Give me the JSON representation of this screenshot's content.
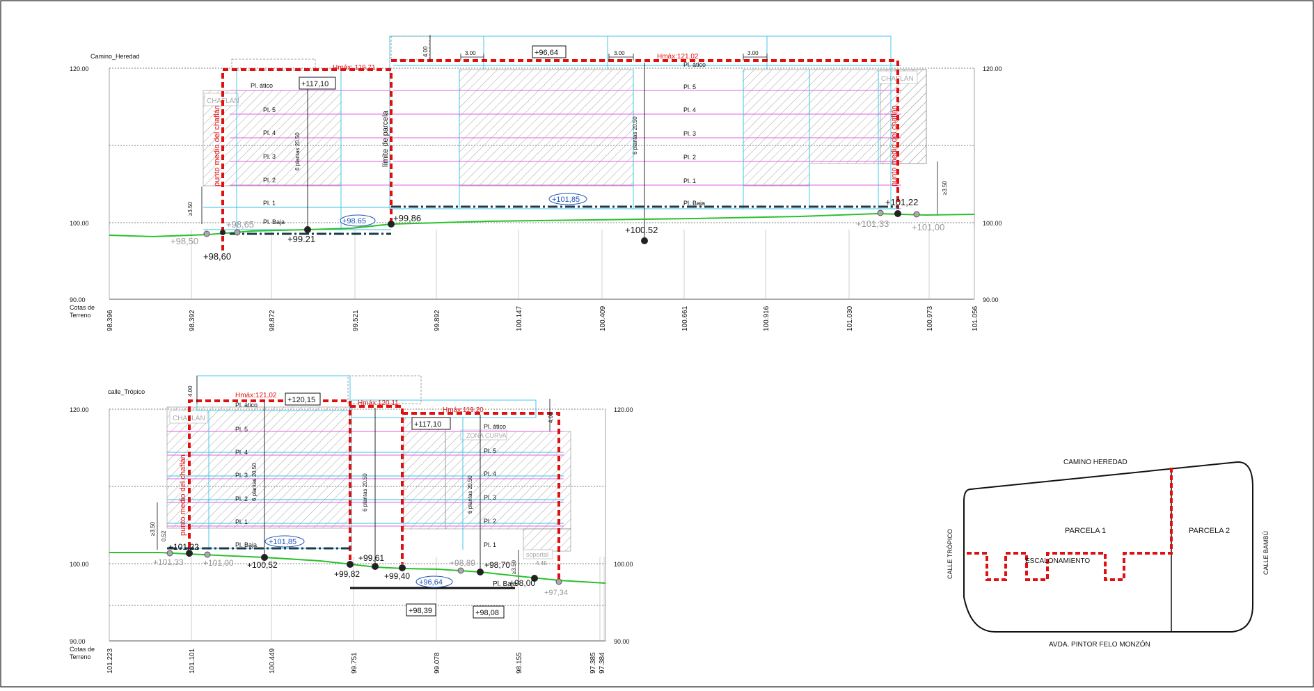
{
  "colors": {
    "ground": "#2bc12b",
    "height_limit": "#e01010",
    "guide": "#33c3e6",
    "floor": "#e060e0",
    "level_box": "#1f53b8",
    "hatch": "#909090",
    "grid": "#555555",
    "text": "#111111",
    "gray_text": "#9a9a9a"
  },
  "section_top": {
    "street_label": "Camino_Heredad",
    "axis_left": [
      "120.00",
      "100.00",
      "90.00"
    ],
    "axis_right": [
      "120.00",
      "100.00",
      "90.00"
    ],
    "terrain_caption": [
      "Cotas de",
      "Terreno"
    ],
    "terrain_values": [
      "98.396",
      "98.392",
      "98.872",
      "99.521",
      "99.892",
      "100.147",
      "100.409",
      "100.661",
      "100.916",
      "101.030",
      "100.973",
      "101.056"
    ],
    "floors_left": [
      "Pl. ático",
      "Pl. 5",
      "Pl. 4",
      "Pl. 3",
      "Pl. 2",
      "Pl. 1",
      "Pl. Baja"
    ],
    "floors_right": [
      "Pl. ático",
      "Pl. 5",
      "Pl. 4",
      "Pl. 3",
      "Pl. 2",
      "Pl. 1",
      "Pl. Baja"
    ],
    "hmax_left": "Hmáx: 119,71",
    "hmax_right": "Hmáx:121,02",
    "box_117": "+117,10",
    "box_96": "+96,64",
    "oval_98": "+98.65",
    "oval_101": "+101,85",
    "dim_300": [
      "3.00",
      "3.00",
      "3.00"
    ],
    "dim_400": "4.00",
    "dim_350_left": "≥3.50",
    "dim_350_right": "≥3.50",
    "plantas_left": "6 plantas 20.50",
    "plantas_mid": "6 plantas 20.50",
    "limite": "límite de parcela",
    "chaflan_left": "punto medio del chaflán",
    "chaflan_right": "punto medio del chaflán",
    "chaflan_tag_left": "CHAFLÁN",
    "chaflan_tag_right": "CHAFLÁN",
    "levels": {
      "l9850": "+98,50",
      "l9860": "+98,60",
      "l9865": "+98,65",
      "l9921": "+99.21",
      "l9986": "+99,86",
      "l10052": "+100.52",
      "l10133": "+101,33",
      "l10122": "+101,22",
      "l10100": "+101,00"
    }
  },
  "section_bottom": {
    "street_label": "calle_Trópico",
    "axis_left": [
      "120.00",
      "100.00",
      "90.00"
    ],
    "axis_right": [
      "120.00",
      "100.00",
      "90.00"
    ],
    "terrain_caption": [
      "Cotas de",
      "Terreno"
    ],
    "terrain_values": [
      "101.223",
      "101.101",
      "100.449",
      "99.751",
      "99.078",
      "98.155",
      "97.385",
      "97.384"
    ],
    "floors_left": [
      "Pl. ático",
      "Pl. 5",
      "Pl. 4",
      "Pl. 3",
      "Pl. 2",
      "Pl. 1",
      "Pl. Baja"
    ],
    "floors_right": [
      "Pl. ático",
      "Pl. 5",
      "Pl. 4",
      "Pl. 3",
      "Pl. 2",
      "Pl. 1",
      "Pl. Baja"
    ],
    "hmax_1": "Hmáx:121,02",
    "hmax_2": "Hmáx:120,11",
    "hmax_3": "Hmáx:119,20",
    "box_12015": "+120,15",
    "box_11710": "+117,10",
    "box_9839": "+98,39",
    "box_9808": "+98,08",
    "oval_101": "+101,85",
    "oval_96": "+96,64",
    "dim_400": "4.00",
    "dim_400_b": "4.00",
    "dim_350": "≥3.50",
    "dim_350_b": "≥3.50",
    "dim_052": "0.52",
    "dim_445": "4.45",
    "plantas": [
      "6 plantas 20.50",
      "6 plantas 20.50",
      "6 plantas 20.50"
    ],
    "chaflan": "punto medio del chaflán",
    "chaflan_tag": "CHAFLÁN",
    "zona_curva": "ZONA CURVA",
    "soportal": "soportal",
    "pl_baja_note": "Pl. Baja",
    "levels": {
      "l10133": "+101,33",
      "l10122": "+101,22",
      "l10100": "+101,00",
      "l10052": "+100,52",
      "l9982": "+99,82",
      "l9961": "+99,61",
      "l9940": "+99,40",
      "l9889": "+98,89",
      "l9870": "+98,70",
      "l9800": "+98,00",
      "l9734": "+97,34"
    }
  },
  "plan": {
    "north": "CAMINO HEREDAD",
    "south": "AVDA. PINTOR FELO MONZÓN",
    "west": "CALLE TRÓPICO",
    "east": "CALLE BAMBÚ",
    "parcela1": "PARCELA 1",
    "parcela2": "PARCELA 2",
    "escalonamiento": "ESCALONAMIENTO"
  }
}
